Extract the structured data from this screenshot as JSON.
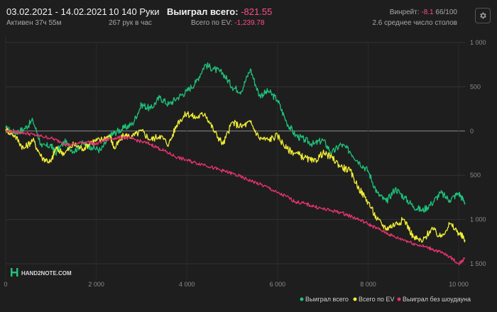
{
  "header": {
    "date_range": "03.02.2021 - 14.02.2021",
    "active_time": "Активен 37ч 55м",
    "hands": "10 140 Руки",
    "hands_per_hour": "267 рук в час",
    "won_total_label": "Выиграл всего:",
    "won_total_value": "-821.55",
    "ev_total_label": "Всего по EV:",
    "ev_total_value": "-1,239.78",
    "winrate_label": "Винрейт:",
    "winrate_value": "-8.1",
    "winrate_suffix": "66/100",
    "avg_tables": "2.6 среднее число столов"
  },
  "logo": {
    "text": "HAND2NOTE.COM"
  },
  "icons": {
    "settings": "gear-icon",
    "logo": "hand2note-logo-icon"
  },
  "colors": {
    "won": "#1ec27a",
    "ev": "#f2ef36",
    "no_showdown": "#e8336d",
    "negative_text": "#ff4d8a"
  },
  "chart_data": {
    "type": "line",
    "title": "",
    "xlabel": "",
    "ylabel": "",
    "xlim": [
      0,
      10140
    ],
    "ylim": [
      -1500,
      1000
    ],
    "y_axis_side": "right",
    "grid": "horizontal",
    "x_ticks": [
      {
        "value": 0,
        "label": "0"
      },
      {
        "value": 2000,
        "label": "2 000"
      },
      {
        "value": 4000,
        "label": "4 000"
      },
      {
        "value": 6000,
        "label": "6 000"
      },
      {
        "value": 8000,
        "label": "8 000"
      },
      {
        "value": 10000,
        "label": "10 000"
      }
    ],
    "y_ticks": [
      {
        "value": 1000,
        "label": "1 000"
      },
      {
        "value": 500,
        "label": "500"
      },
      {
        "value": 0,
        "label": "0"
      },
      {
        "value": -500,
        "label": "500"
      },
      {
        "value": -1000,
        "label": "1 000"
      },
      {
        "value": -1500,
        "label": "1 500"
      }
    ],
    "legend_position": "bottom-right",
    "series": [
      {
        "name": "Выиграл всего",
        "color": "#1ec27a",
        "x": [
          0,
          200,
          400,
          600,
          800,
          1000,
          1100,
          1300,
          1500,
          1700,
          1900,
          2100,
          2300,
          2400,
          2600,
          2800,
          3000,
          3200,
          3400,
          3600,
          3800,
          4000,
          4200,
          4400,
          4600,
          4800,
          5000,
          5200,
          5400,
          5600,
          5800,
          6000,
          6200,
          6400,
          6600,
          6800,
          7000,
          7200,
          7400,
          7600,
          7800,
          8000,
          8200,
          8400,
          8600,
          8800,
          9000,
          9200,
          9400,
          9600,
          9800,
          10000,
          10140
        ],
        "y": [
          30,
          -20,
          20,
          120,
          -180,
          -160,
          -250,
          -120,
          -230,
          -140,
          -180,
          -220,
          -60,
          -20,
          30,
          80,
          300,
          250,
          380,
          300,
          380,
          450,
          550,
          750,
          700,
          650,
          500,
          450,
          700,
          400,
          450,
          350,
          100,
          -50,
          -100,
          -150,
          -100,
          -250,
          -150,
          -230,
          -350,
          -450,
          -700,
          -800,
          -650,
          -750,
          -850,
          -900,
          -820,
          -700,
          -780,
          -700,
          -810
        ]
      },
      {
        "name": "Всего по EV",
        "color": "#f2ef36",
        "x": [
          0,
          200,
          400,
          600,
          800,
          1000,
          1100,
          1300,
          1500,
          1700,
          1900,
          2100,
          2300,
          2400,
          2600,
          2800,
          3000,
          3200,
          3400,
          3600,
          3800,
          4000,
          4200,
          4400,
          4600,
          4800,
          5000,
          5200,
          5400,
          5600,
          5800,
          6000,
          6200,
          6400,
          6600,
          6800,
          7000,
          7200,
          7400,
          7600,
          7800,
          8000,
          8200,
          8400,
          8600,
          8800,
          9000,
          9200,
          9400,
          9600,
          9800,
          10000,
          10140
        ],
        "y": [
          20,
          -50,
          -200,
          -100,
          -300,
          -350,
          -200,
          -250,
          -150,
          -200,
          -120,
          -100,
          -50,
          -200,
          -50,
          -60,
          0,
          -100,
          -50,
          -150,
          100,
          200,
          150,
          200,
          0,
          -150,
          100,
          50,
          100,
          -80,
          -100,
          -50,
          -200,
          -250,
          -300,
          -350,
          -250,
          -300,
          -400,
          -450,
          -650,
          -800,
          -1000,
          -1100,
          -1050,
          -1000,
          -1200,
          -1250,
          -1100,
          -1200,
          -1050,
          -1150,
          -1230
        ]
      },
      {
        "name": "Выиграл без шоудауна",
        "color": "#e8336d",
        "x": [
          0,
          200,
          400,
          600,
          800,
          1000,
          1200,
          1400,
          1600,
          1800,
          2000,
          2200,
          2400,
          2600,
          2800,
          3000,
          3200,
          3400,
          3600,
          3800,
          4000,
          4200,
          4400,
          4600,
          4800,
          5000,
          5200,
          5400,
          5600,
          5800,
          6000,
          6200,
          6400,
          6600,
          6800,
          7000,
          7200,
          7400,
          7600,
          7800,
          8000,
          8200,
          8400,
          8600,
          8800,
          9000,
          9200,
          9400,
          9600,
          9800,
          10000,
          10140
        ],
        "y": [
          0,
          -10,
          -20,
          -40,
          -60,
          -80,
          -120,
          -160,
          -140,
          -120,
          -150,
          -100,
          -80,
          -70,
          -90,
          -120,
          -150,
          -200,
          -250,
          -300,
          -330,
          -360,
          -380,
          -420,
          -450,
          -480,
          -520,
          -560,
          -600,
          -640,
          -700,
          -740,
          -800,
          -820,
          -850,
          -880,
          -900,
          -920,
          -960,
          -1000,
          -1050,
          -1100,
          -1150,
          -1200,
          -1230,
          -1270,
          -1300,
          -1330,
          -1370,
          -1420,
          -1500,
          -1440
        ]
      }
    ]
  }
}
